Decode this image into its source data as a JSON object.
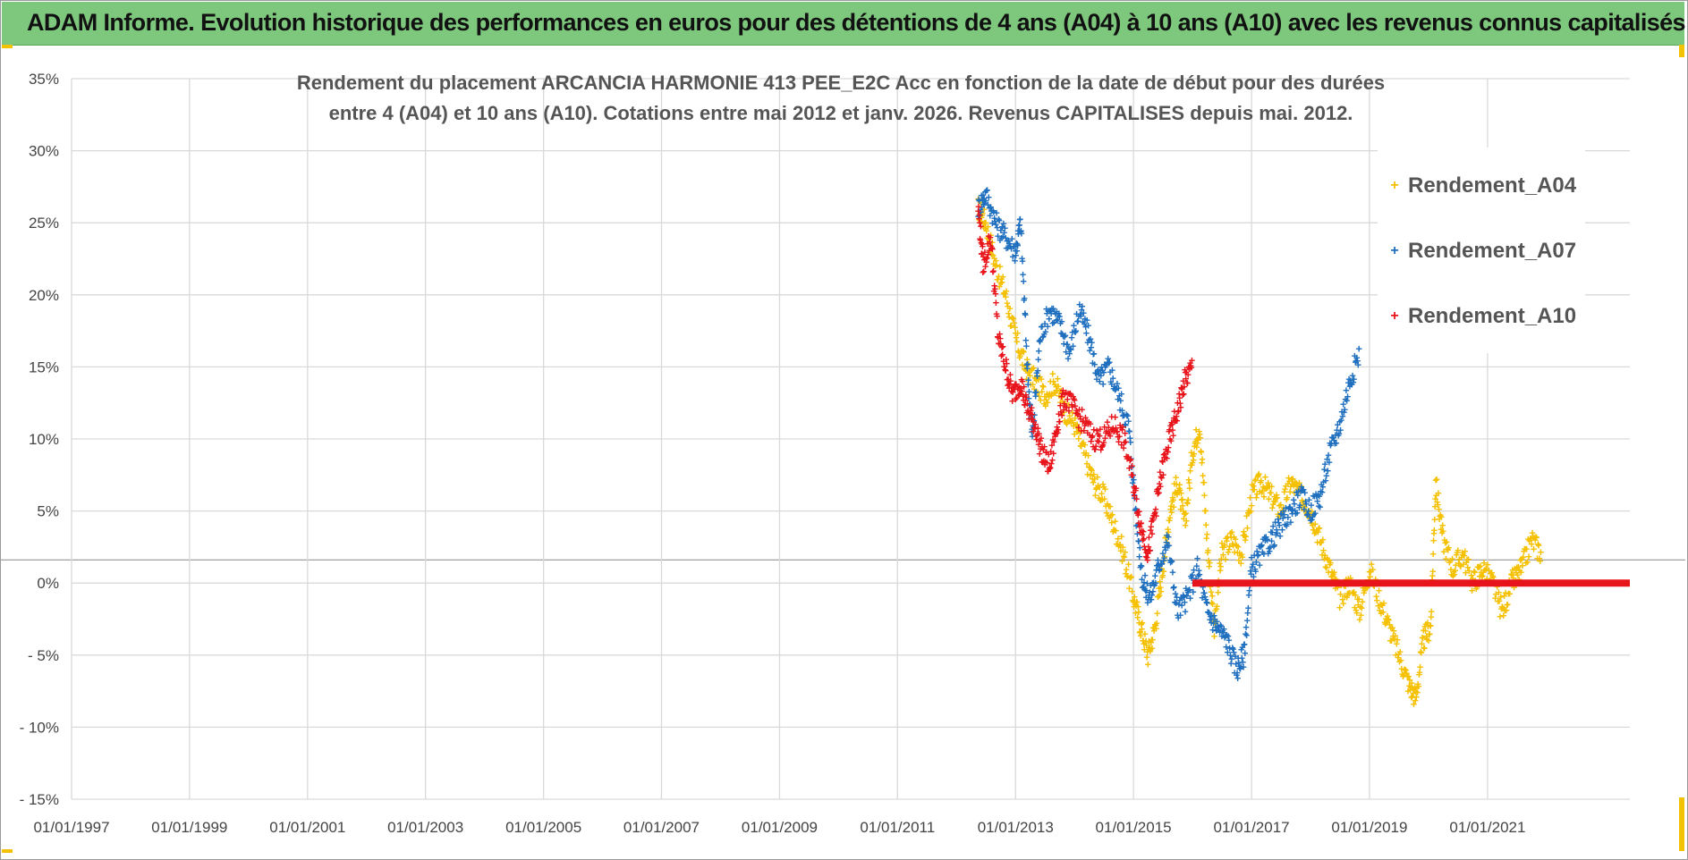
{
  "banner": {
    "title": "ADAM Informe. Evolution historique des performances en euros pour des détentions de 4 ans (A04) à 10 ans (A10) avec les revenus connus capitalisés"
  },
  "colors": {
    "banner_bg": "#7ec87e",
    "grid": "#d9d9d9",
    "A04": "#f5c000",
    "A07": "#1f6fbf",
    "A10": "#e8141b"
  },
  "chart_data": {
    "type": "scatter",
    "title": "Rendement du placement ARCANCIA HARMONIE 413 PEE_E2C Acc en fonction de la date de début pour des durées",
    "subtitle": "entre 4 (A04) et 10 ans (A10). Cotations entre mai 2012 et janv. 2026. Revenus CAPITALISES depuis mai. 2012.",
    "xlabel": "",
    "ylabel": "",
    "x_type": "date",
    "xlim": [
      "1997-01-01",
      "2023-06-01"
    ],
    "ylim": [
      -15,
      35
    ],
    "y_unit": "%",
    "y_ticks": [
      "35%",
      "30%",
      "25%",
      "20%",
      "15%",
      "10%",
      "5%",
      "0%",
      "- 5%",
      "- 10%",
      "- 15%"
    ],
    "x_ticks": [
      "01/01/1997",
      "01/01/1999",
      "01/01/2001",
      "01/01/2003",
      "01/01/2005",
      "01/01/2007",
      "01/01/2009",
      "01/01/2011",
      "01/01/2013",
      "01/01/2015",
      "01/01/2017",
      "01/01/2019",
      "01/01/2021"
    ],
    "grid": true,
    "legend_position": "top-right",
    "series": [
      {
        "name": "Rendement_A04",
        "color": "#f5c000",
        "points": [
          [
            "2012-05-15",
            26
          ],
          [
            "2012-07-01",
            25
          ],
          [
            "2012-09-01",
            22
          ],
          [
            "2012-11-01",
            20
          ],
          [
            "2013-01-01",
            17
          ],
          [
            "2013-03-01",
            15
          ],
          [
            "2013-05-01",
            14
          ],
          [
            "2013-07-01",
            13
          ],
          [
            "2013-09-01",
            14
          ],
          [
            "2013-11-01",
            12
          ],
          [
            "2014-01-01",
            11
          ],
          [
            "2014-03-01",
            9
          ],
          [
            "2014-05-01",
            7
          ],
          [
            "2014-07-01",
            6
          ],
          [
            "2014-09-01",
            4
          ],
          [
            "2014-11-01",
            2
          ],
          [
            "2015-01-01",
            -1
          ],
          [
            "2015-02-15",
            -3
          ],
          [
            "2015-04-01",
            -5
          ],
          [
            "2015-05-15",
            -3
          ],
          [
            "2015-07-01",
            1
          ],
          [
            "2015-08-15",
            5
          ],
          [
            "2015-10-01",
            7
          ],
          [
            "2015-11-15",
            4
          ],
          [
            "2016-01-01",
            9
          ],
          [
            "2016-02-15",
            11
          ],
          [
            "2016-04-01",
            3
          ],
          [
            "2016-05-15",
            -3
          ],
          [
            "2016-07-01",
            2
          ],
          [
            "2016-09-01",
            3
          ],
          [
            "2016-11-01",
            2
          ],
          [
            "2017-01-01",
            6
          ],
          [
            "2017-03-01",
            7
          ],
          [
            "2017-05-01",
            6
          ],
          [
            "2017-07-01",
            5
          ],
          [
            "2017-09-01",
            7
          ],
          [
            "2017-11-01",
            6
          ],
          [
            "2018-01-01",
            5
          ],
          [
            "2018-03-01",
            3
          ],
          [
            "2018-05-01",
            1
          ],
          [
            "2018-07-01",
            -1
          ],
          [
            "2018-09-01",
            0
          ],
          [
            "2018-11-01",
            -2
          ],
          [
            "2019-01-01",
            1
          ],
          [
            "2019-03-01",
            -1
          ],
          [
            "2019-05-01",
            -3
          ],
          [
            "2019-07-01",
            -5
          ],
          [
            "2019-09-01",
            -7
          ],
          [
            "2019-10-15",
            -8
          ],
          [
            "2019-12-01",
            -4
          ],
          [
            "2020-01-15",
            -3
          ],
          [
            "2020-02-15",
            7
          ],
          [
            "2020-04-01",
            3
          ],
          [
            "2020-06-01",
            1
          ],
          [
            "2020-08-01",
            2
          ],
          [
            "2020-10-01",
            0
          ],
          [
            "2020-12-01",
            1
          ],
          [
            "2021-02-01",
            0
          ],
          [
            "2021-04-01",
            -2
          ],
          [
            "2021-06-01",
            0
          ],
          [
            "2021-08-01",
            1
          ],
          [
            "2021-10-01",
            3
          ],
          [
            "2021-12-01",
            2
          ]
        ]
      },
      {
        "name": "Rendement_A07",
        "color": "#1f6fbf",
        "points": [
          [
            "2012-05-15",
            26
          ],
          [
            "2012-07-01",
            27
          ],
          [
            "2012-09-01",
            25
          ],
          [
            "2012-11-01",
            24
          ],
          [
            "2013-01-01",
            23
          ],
          [
            "2013-02-01",
            25
          ],
          [
            "2013-03-15",
            15
          ],
          [
            "2013-04-15",
            10
          ],
          [
            "2013-06-01",
            17
          ],
          [
            "2013-08-01",
            19
          ],
          [
            "2013-10-01",
            18
          ],
          [
            "2013-12-01",
            16
          ],
          [
            "2014-02-01",
            19
          ],
          [
            "2014-04-01",
            17
          ],
          [
            "2014-06-01",
            14
          ],
          [
            "2014-08-01",
            15
          ],
          [
            "2014-10-01",
            13
          ],
          [
            "2014-12-01",
            11
          ],
          [
            "2015-01-15",
            5
          ],
          [
            "2015-03-01",
            0
          ],
          [
            "2015-04-15",
            -1
          ],
          [
            "2015-06-01",
            1
          ],
          [
            "2015-08-01",
            3
          ],
          [
            "2015-10-01",
            -2
          ],
          [
            "2015-12-01",
            -1
          ],
          [
            "2016-02-01",
            1
          ],
          [
            "2016-04-01",
            -2
          ],
          [
            "2016-06-01",
            -3
          ],
          [
            "2016-08-01",
            -4
          ],
          [
            "2016-10-01",
            -6
          ],
          [
            "2016-11-15",
            -5
          ],
          [
            "2017-01-01",
            1
          ],
          [
            "2017-03-01",
            2
          ],
          [
            "2017-05-01",
            3
          ],
          [
            "2017-07-01",
            4
          ],
          [
            "2017-09-01",
            5
          ],
          [
            "2017-11-01",
            6
          ],
          [
            "2018-01-01",
            5
          ],
          [
            "2018-03-01",
            6
          ],
          [
            "2018-05-01",
            9
          ],
          [
            "2018-07-01",
            11
          ],
          [
            "2018-09-01",
            14
          ],
          [
            "2018-11-01",
            16
          ]
        ]
      },
      {
        "name": "Rendement_A10",
        "color": "#e8141b",
        "points": [
          [
            "2012-05-15",
            26
          ],
          [
            "2012-06-15",
            22
          ],
          [
            "2012-08-01",
            24
          ],
          [
            "2012-09-15",
            17
          ],
          [
            "2012-11-01",
            15
          ],
          [
            "2012-12-15",
            13
          ],
          [
            "2013-02-01",
            14
          ],
          [
            "2013-03-15",
            12
          ],
          [
            "2013-05-01",
            11
          ],
          [
            "2013-06-15",
            9
          ],
          [
            "2013-08-01",
            8
          ],
          [
            "2013-09-15",
            11
          ],
          [
            "2013-11-01",
            13
          ],
          [
            "2014-01-01",
            12
          ],
          [
            "2014-03-01",
            11
          ],
          [
            "2014-05-01",
            10
          ],
          [
            "2014-07-01",
            10
          ],
          [
            "2014-09-01",
            11
          ],
          [
            "2014-11-01",
            10
          ],
          [
            "2015-01-01",
            7
          ],
          [
            "2015-02-15",
            4
          ],
          [
            "2015-04-01",
            2
          ],
          [
            "2015-05-15",
            5
          ],
          [
            "2015-07-01",
            8
          ],
          [
            "2015-08-15",
            10
          ],
          [
            "2015-10-01",
            12
          ],
          [
            "2015-11-15",
            14
          ],
          [
            "2016-01-01",
            15
          ]
        ],
        "zero_line": [
          "2016-01-01",
          "2023-06-01"
        ]
      }
    ]
  }
}
